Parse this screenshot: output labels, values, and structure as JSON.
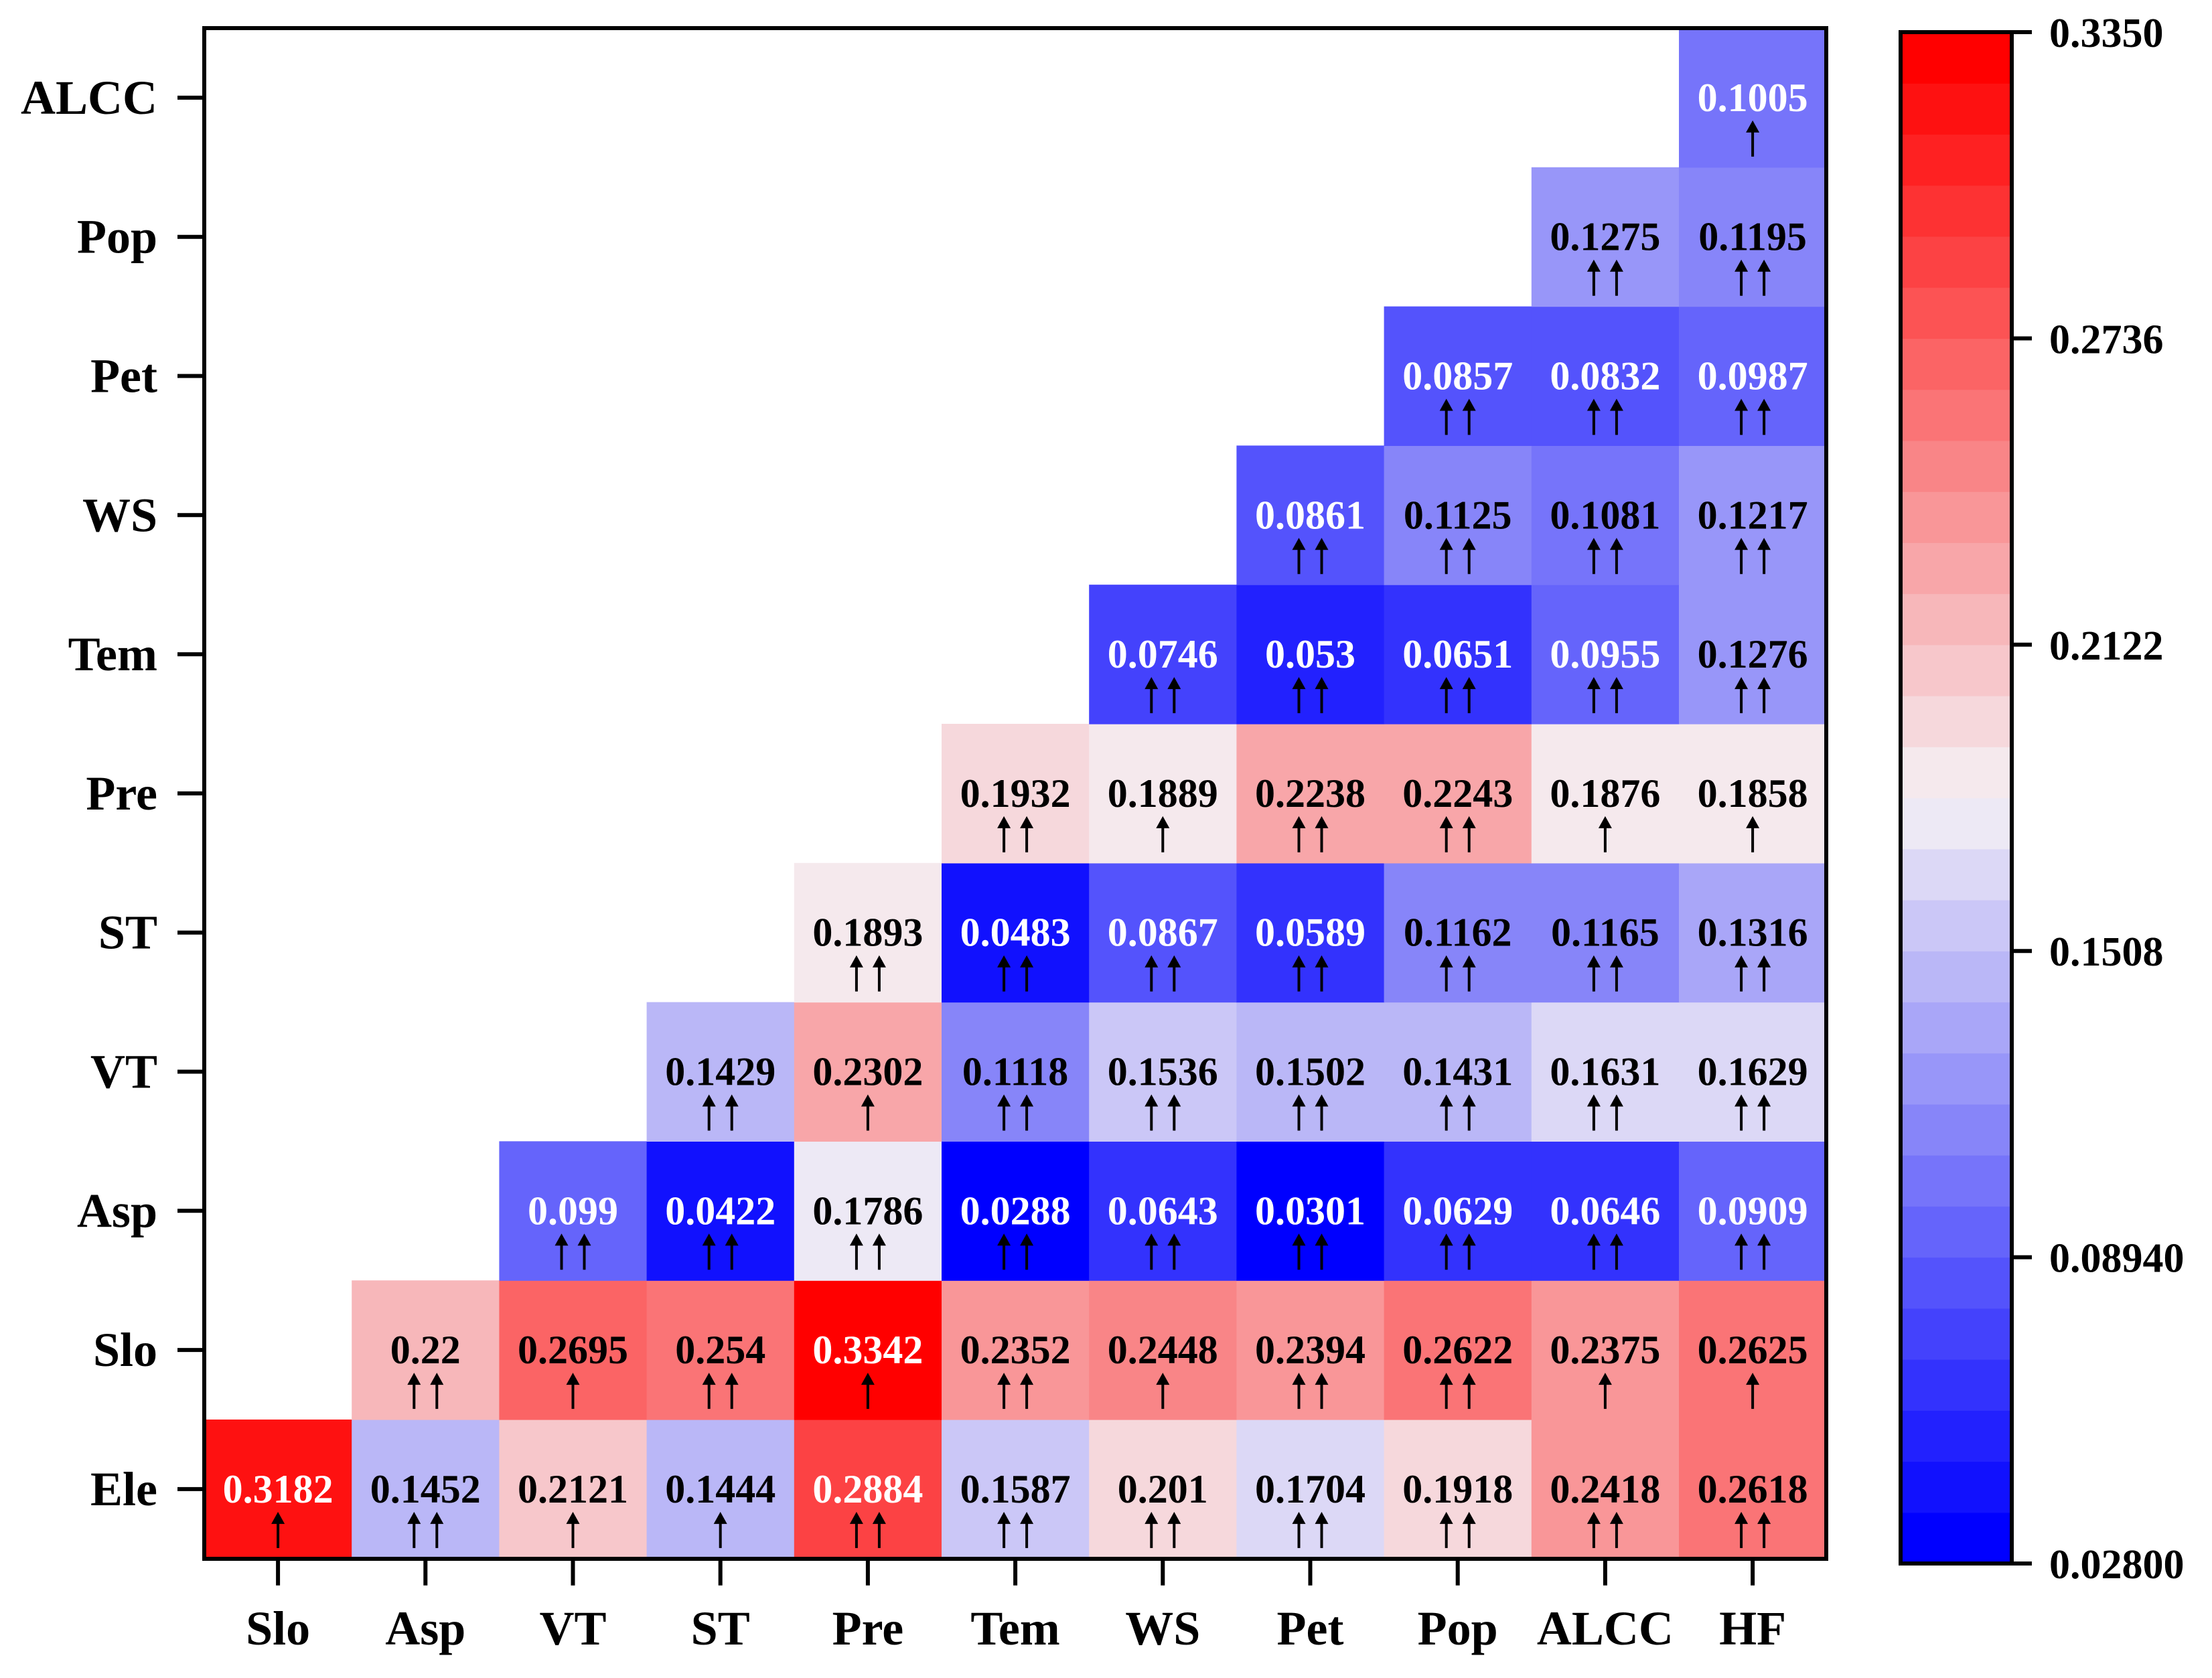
{
  "chart_data": {
    "type": "heatmap",
    "title": "",
    "xlabel": "",
    "ylabel": "",
    "x_categories": [
      "Slo",
      "Asp",
      "VT",
      "ST",
      "Pre",
      "Tem",
      "WS",
      "Pet",
      "Pop",
      "ALCC",
      "HF"
    ],
    "y_categories": [
      "Ele",
      "Slo",
      "Asp",
      "VT",
      "ST",
      "Pre",
      "Tem",
      "WS",
      "Pet",
      "Pop",
      "ALCC"
    ],
    "cells": [
      {
        "row": "Ele",
        "values": [
          "0.3182",
          "0.1452",
          "0.2121",
          "0.1444",
          "0.2884",
          "0.1587",
          "0.201",
          "0.1704",
          "0.1918",
          "0.2418",
          "0.2618"
        ],
        "arrows": [
          1,
          2,
          1,
          1,
          2,
          2,
          2,
          2,
          2,
          2,
          2
        ]
      },
      {
        "row": "Slo",
        "values": [
          null,
          "0.22",
          "0.2695",
          "0.254",
          "0.3342",
          "0.2352",
          "0.2448",
          "0.2394",
          "0.2622",
          "0.2375",
          "0.2625"
        ],
        "arrows": [
          0,
          2,
          1,
          2,
          1,
          2,
          1,
          2,
          2,
          1,
          1
        ]
      },
      {
        "row": "Asp",
        "values": [
          null,
          null,
          "0.099",
          "0.0422",
          "0.1786",
          "0.0288",
          "0.0643",
          "0.0301",
          "0.0629",
          "0.0646",
          "0.0909"
        ],
        "arrows": [
          0,
          0,
          2,
          2,
          2,
          2,
          2,
          2,
          2,
          2,
          2
        ]
      },
      {
        "row": "VT",
        "values": [
          null,
          null,
          null,
          "0.1429",
          "0.2302",
          "0.1118",
          "0.1536",
          "0.1502",
          "0.1431",
          "0.1631",
          "0.1629"
        ],
        "arrows": [
          0,
          0,
          0,
          2,
          1,
          2,
          2,
          2,
          2,
          2,
          2
        ]
      },
      {
        "row": "ST",
        "values": [
          null,
          null,
          null,
          null,
          "0.1893",
          "0.0483",
          "0.0867",
          "0.0589",
          "0.1162",
          "0.1165",
          "0.1316"
        ],
        "arrows": [
          0,
          0,
          0,
          0,
          2,
          2,
          2,
          2,
          2,
          2,
          2
        ]
      },
      {
        "row": "Pre",
        "values": [
          null,
          null,
          null,
          null,
          null,
          "0.1932",
          "0.1889",
          "0.2238",
          "0.2243",
          "0.1876",
          "0.1858"
        ],
        "arrows": [
          0,
          0,
          0,
          0,
          0,
          2,
          1,
          2,
          2,
          1,
          1
        ]
      },
      {
        "row": "Tem",
        "values": [
          null,
          null,
          null,
          null,
          null,
          null,
          "0.0746",
          "0.053",
          "0.0651",
          "0.0955",
          "0.1276"
        ],
        "arrows": [
          0,
          0,
          0,
          0,
          0,
          0,
          2,
          2,
          2,
          2,
          2
        ]
      },
      {
        "row": "WS",
        "values": [
          null,
          null,
          null,
          null,
          null,
          null,
          null,
          "0.0861",
          "0.1125",
          "0.1081",
          "0.1217"
        ],
        "arrows": [
          0,
          0,
          0,
          0,
          0,
          0,
          0,
          2,
          2,
          2,
          2
        ]
      },
      {
        "row": "Pet",
        "values": [
          null,
          null,
          null,
          null,
          null,
          null,
          null,
          null,
          "0.0857",
          "0.0832",
          "0.0987"
        ],
        "arrows": [
          0,
          0,
          0,
          0,
          0,
          0,
          0,
          0,
          2,
          2,
          2
        ]
      },
      {
        "row": "Pop",
        "values": [
          null,
          null,
          null,
          null,
          null,
          null,
          null,
          null,
          null,
          "0.1275",
          "0.1195"
        ],
        "arrows": [
          0,
          0,
          0,
          0,
          0,
          0,
          0,
          0,
          0,
          2,
          2
        ]
      },
      {
        "row": "ALCC",
        "values": [
          null,
          null,
          null,
          null,
          null,
          null,
          null,
          null,
          null,
          null,
          "0.1005"
        ],
        "arrows": [
          0,
          0,
          0,
          0,
          0,
          0,
          0,
          0,
          0,
          0,
          1
        ]
      }
    ],
    "colorbar": {
      "min": 0.028,
      "max": 0.335,
      "tick_labels": [
        "0.3350",
        "0.2736",
        "0.2122",
        "0.1508",
        "0.08940",
        "0.02800"
      ],
      "low_color": "#0000ff",
      "mid_color": "#f5f1f5",
      "high_color": "#ff0000",
      "legend_position": "right"
    },
    "grid": false
  }
}
